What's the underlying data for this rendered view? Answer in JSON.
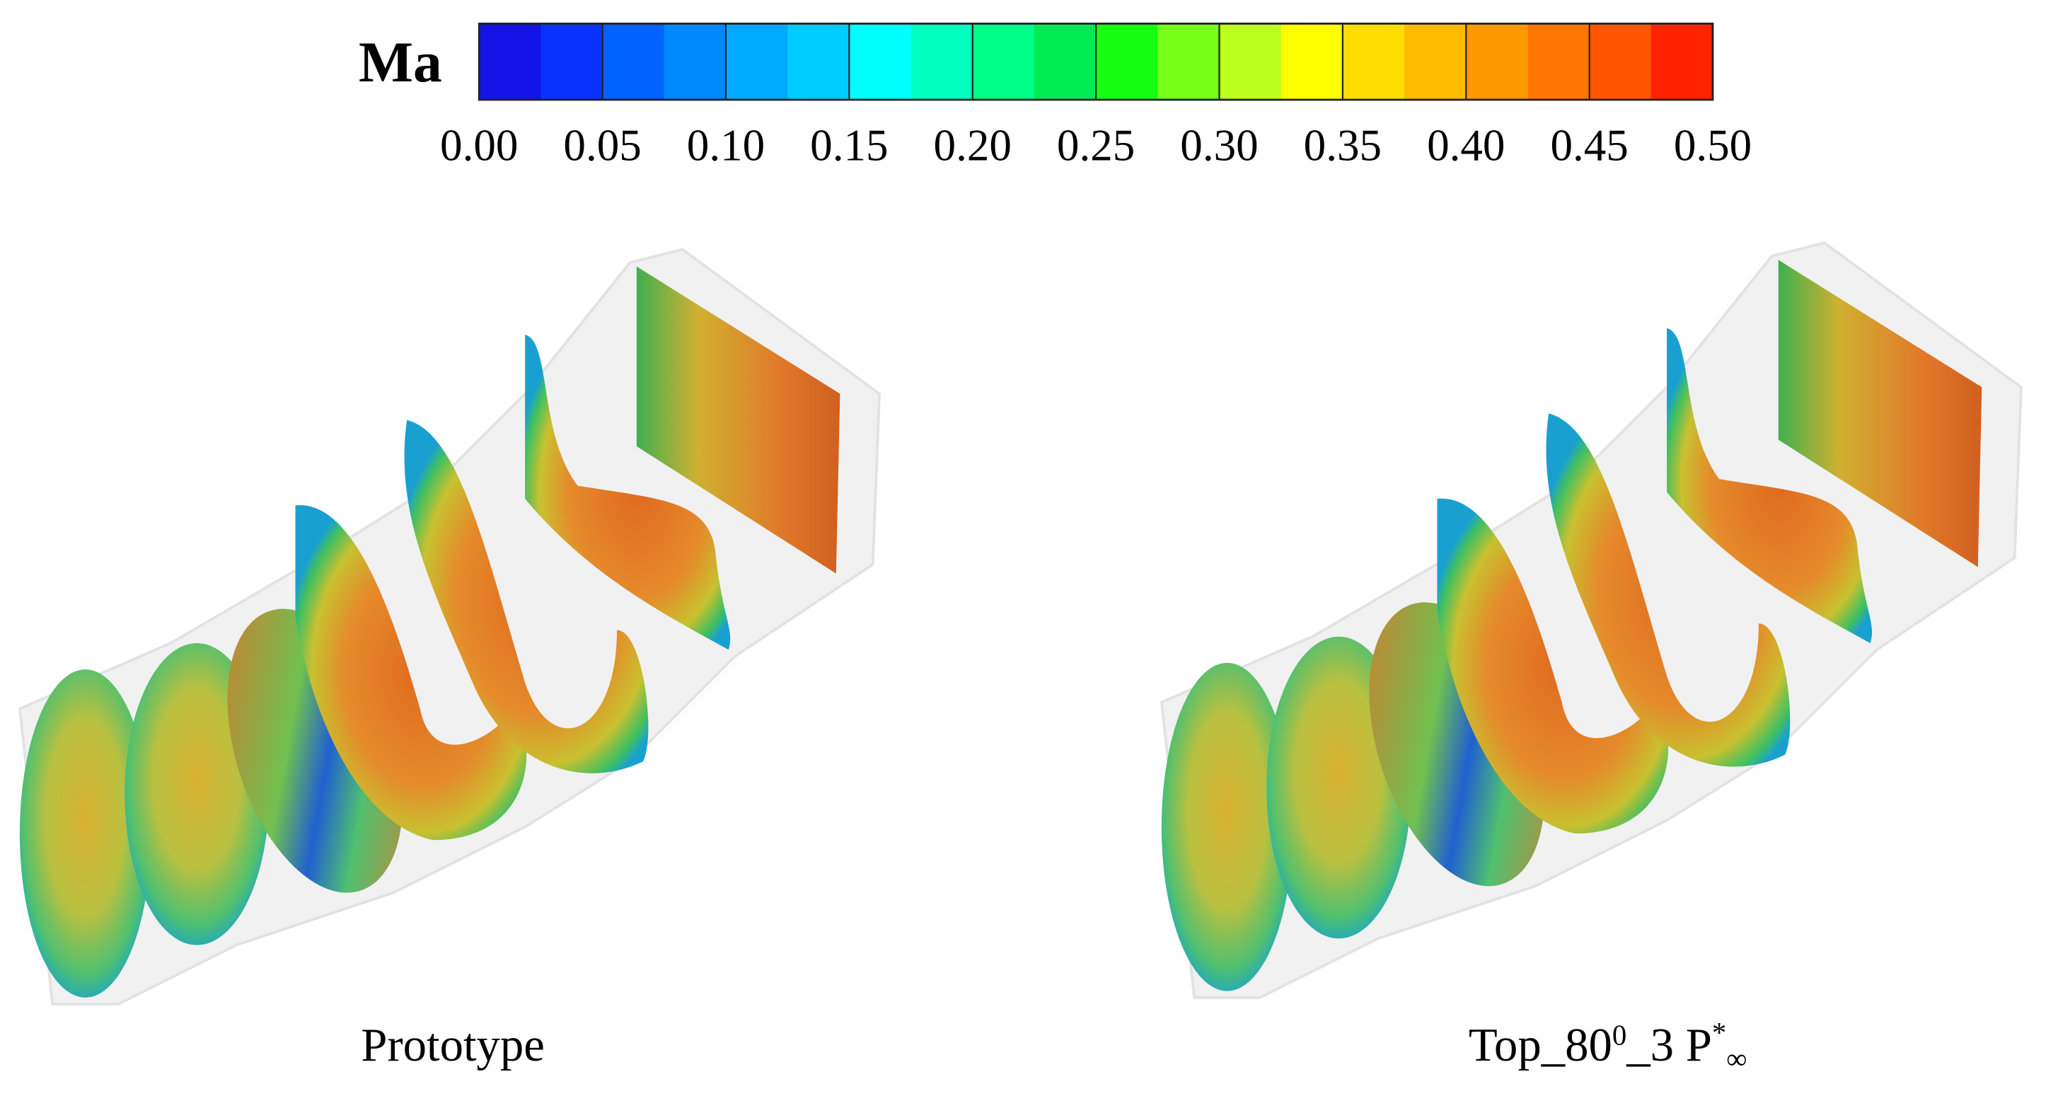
{
  "colorbar": {
    "title": "Ma",
    "lim": [
      0,
      0.5
    ],
    "ticks": [
      {
        "value": 0,
        "label": "0.00"
      },
      {
        "value": 0.05,
        "label": "0.05"
      },
      {
        "value": 0.1,
        "label": "0.10"
      },
      {
        "value": 0.15,
        "label": "0.15"
      },
      {
        "value": 0.2,
        "label": "0.20"
      },
      {
        "value": 0.25,
        "label": "0.25"
      },
      {
        "value": 0.3,
        "label": "0.30"
      },
      {
        "value": 0.35,
        "label": "0.35"
      },
      {
        "value": 0.4,
        "label": "0.40"
      },
      {
        "value": 0.45,
        "label": "0.45"
      },
      {
        "value": 0.5,
        "label": "0.50"
      }
    ],
    "colors": [
      "#1414e6",
      "#0833ff",
      "#0062ff",
      "#0088ff",
      "#00aaff",
      "#00ccff",
      "#00ffff",
      "#00ffc0",
      "#00ff88",
      "#00ea55",
      "#14ff14",
      "#77ff1a",
      "#bbff1a",
      "#ffff00",
      "#ffdd00",
      "#ffbb00",
      "#ff9900",
      "#ff7700",
      "#ff5500",
      "#ff2200"
    ]
  },
  "panels": [
    {
      "caption": [
        "Prototype"
      ]
    },
    {
      "caption": [
        "Top_80",
        "0",
        "_3 P",
        "*",
        "∞"
      ]
    }
  ]
}
